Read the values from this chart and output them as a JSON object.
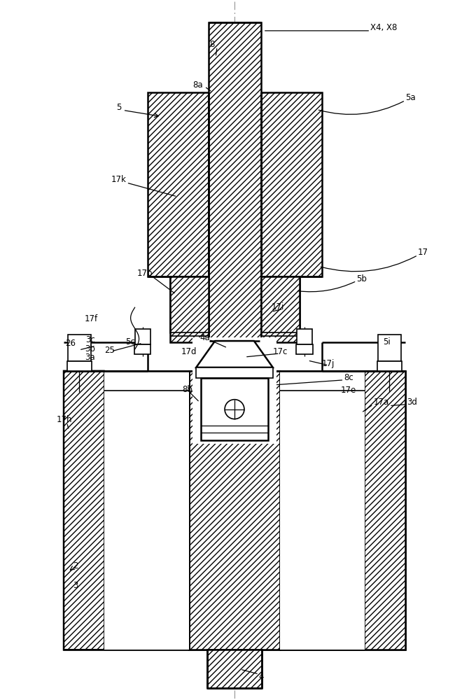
{
  "bg": "#ffffff",
  "lc": "#000000",
  "fw": 6.7,
  "fh": 10.0,
  "labels": {
    "X4_X8": "X4, X8",
    "8": "8",
    "8a": "8a",
    "5a": "5a",
    "5": "5",
    "17k": "17k",
    "17b": "17b",
    "17f": "17f",
    "26": "26",
    "25": "25",
    "5c": "5c",
    "17d": "17d",
    "4a": "4a",
    "17i": "17i",
    "5b": "5b",
    "17c": "17c",
    "5i": "5i",
    "17j": "17j",
    "3c": "3c",
    "3b": "3b",
    "3a": "3a",
    "8b": "8b",
    "8c": "8c",
    "17e": "17e",
    "17a": "17a",
    "17h": "17h",
    "3d": "3d",
    "2": "2",
    "3": "3",
    "4": "4",
    "17": "17"
  }
}
